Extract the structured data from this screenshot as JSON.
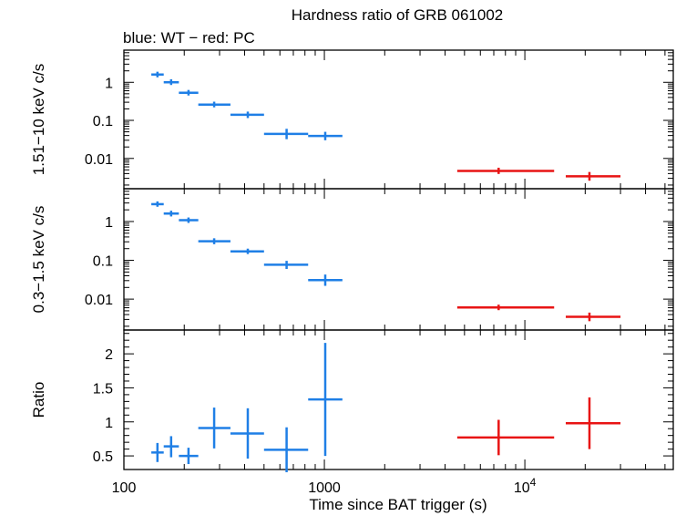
{
  "chart_data": {
    "type": "scatter",
    "title": "Hardness ratio of GRB 061002",
    "subtitle": "blue: WT − red: PC",
    "xlabel": "Time since BAT trigger (s)",
    "xscale": "log",
    "xlim": [
      100,
      55000
    ],
    "x_tick_labels": [
      {
        "value": 100,
        "label": "100"
      },
      {
        "value": 1000,
        "label": "1000"
      },
      {
        "value": 10000,
        "label": "10",
        "exponent": "4"
      }
    ],
    "colors": {
      "WT": "#1f7fe6",
      "PC": "#e81414"
    },
    "panels": [
      {
        "id": "hard",
        "ylabel": "1.51−10 keV c/s",
        "yscale": "log",
        "ylim": [
          0.0016,
          7
        ],
        "y_ticks": [
          {
            "value": 1,
            "label": "1"
          },
          {
            "value": 0.1,
            "label": "0.1"
          },
          {
            "value": 0.01,
            "label": "0.01"
          }
        ],
        "series": [
          {
            "name": "WT",
            "color": "#1f7fe6",
            "points": [
              {
                "x": 147,
                "xlo": 137,
                "xhi": 158,
                "y": 1.6,
                "ylo": 1.35,
                "yhi": 1.9
              },
              {
                "x": 172,
                "xlo": 158,
                "xhi": 188,
                "y": 1.0,
                "ylo": 0.85,
                "yhi": 1.2
              },
              {
                "x": 210,
                "xlo": 188,
                "xhi": 235,
                "y": 0.53,
                "ylo": 0.45,
                "yhi": 0.63
              },
              {
                "x": 282,
                "xlo": 235,
                "xhi": 340,
                "y": 0.26,
                "ylo": 0.22,
                "yhi": 0.31
              },
              {
                "x": 415,
                "xlo": 340,
                "xhi": 500,
                "y": 0.14,
                "ylo": 0.115,
                "yhi": 0.17
              },
              {
                "x": 648,
                "xlo": 500,
                "xhi": 830,
                "y": 0.044,
                "ylo": 0.032,
                "yhi": 0.06
              },
              {
                "x": 1010,
                "xlo": 830,
                "xhi": 1230,
                "y": 0.039,
                "ylo": 0.03,
                "yhi": 0.05
              }
            ]
          },
          {
            "name": "PC",
            "color": "#e81414",
            "points": [
              {
                "x": 7400,
                "xlo": 4600,
                "xhi": 14000,
                "y": 0.0047,
                "ylo": 0.0039,
                "yhi": 0.0057
              },
              {
                "x": 21000,
                "xlo": 16000,
                "xhi": 30000,
                "y": 0.0034,
                "ylo": 0.0026,
                "yhi": 0.0044
              }
            ]
          }
        ]
      },
      {
        "id": "soft",
        "ylabel": "0.3−1.5 keV c/s",
        "yscale": "log",
        "ylim": [
          0.0016,
          7
        ],
        "y_ticks": [
          {
            "value": 1,
            "label": "1"
          },
          {
            "value": 0.1,
            "label": "0.1"
          },
          {
            "value": 0.01,
            "label": "0.01"
          }
        ],
        "series": [
          {
            "name": "WT",
            "color": "#1f7fe6",
            "points": [
              {
                "x": 147,
                "xlo": 137,
                "xhi": 158,
                "y": 2.8,
                "ylo": 2.4,
                "yhi": 3.3
              },
              {
                "x": 172,
                "xlo": 158,
                "xhi": 188,
                "y": 1.6,
                "ylo": 1.35,
                "yhi": 1.9
              },
              {
                "x": 210,
                "xlo": 188,
                "xhi": 235,
                "y": 1.08,
                "ylo": 0.92,
                "yhi": 1.27
              },
              {
                "x": 282,
                "xlo": 235,
                "xhi": 340,
                "y": 0.31,
                "ylo": 0.26,
                "yhi": 0.37
              },
              {
                "x": 415,
                "xlo": 340,
                "xhi": 500,
                "y": 0.17,
                "ylo": 0.145,
                "yhi": 0.2
              },
              {
                "x": 648,
                "xlo": 500,
                "xhi": 830,
                "y": 0.077,
                "ylo": 0.06,
                "yhi": 0.097
              },
              {
                "x": 1010,
                "xlo": 830,
                "xhi": 1230,
                "y": 0.031,
                "ylo": 0.022,
                "yhi": 0.043
              }
            ]
          },
          {
            "name": "PC",
            "color": "#e81414",
            "points": [
              {
                "x": 7400,
                "xlo": 4600,
                "xhi": 14000,
                "y": 0.0061,
                "ylo": 0.0052,
                "yhi": 0.0072
              },
              {
                "x": 21000,
                "xlo": 16000,
                "xhi": 30000,
                "y": 0.0035,
                "ylo": 0.0027,
                "yhi": 0.0045
              }
            ]
          }
        ]
      },
      {
        "id": "ratio",
        "ylabel": "Ratio",
        "yscale": "linear",
        "ylim": [
          0.3,
          2.35
        ],
        "y_ticks": [
          {
            "value": 2,
            "label": "2"
          },
          {
            "value": 1.5,
            "label": "1.5"
          },
          {
            "value": 1,
            "label": "1"
          },
          {
            "value": 0.5,
            "label": "0.5"
          }
        ],
        "series": [
          {
            "name": "WT",
            "color": "#1f7fe6",
            "points": [
              {
                "x": 147,
                "xlo": 137,
                "xhi": 158,
                "y": 0.55,
                "ylo": 0.41,
                "yhi": 0.69
              },
              {
                "x": 172,
                "xlo": 158,
                "xhi": 188,
                "y": 0.64,
                "ylo": 0.48,
                "yhi": 0.79
              },
              {
                "x": 210,
                "xlo": 188,
                "xhi": 235,
                "y": 0.5,
                "ylo": 0.38,
                "yhi": 0.62
              },
              {
                "x": 282,
                "xlo": 235,
                "xhi": 340,
                "y": 0.91,
                "ylo": 0.61,
                "yhi": 1.21
              },
              {
                "x": 415,
                "xlo": 340,
                "xhi": 500,
                "y": 0.83,
                "ylo": 0.46,
                "yhi": 1.2
              },
              {
                "x": 648,
                "xlo": 500,
                "xhi": 830,
                "y": 0.59,
                "ylo": 0.26,
                "yhi": 0.92
              },
              {
                "x": 1010,
                "xlo": 830,
                "xhi": 1230,
                "y": 1.33,
                "ylo": 0.5,
                "yhi": 2.16
              }
            ]
          },
          {
            "name": "PC",
            "color": "#e81414",
            "points": [
              {
                "x": 7400,
                "xlo": 4600,
                "xhi": 14000,
                "y": 0.77,
                "ylo": 0.51,
                "yhi": 1.03
              },
              {
                "x": 21000,
                "xlo": 16000,
                "xhi": 30000,
                "y": 0.98,
                "ylo": 0.6,
                "yhi": 1.36
              }
            ]
          }
        ]
      }
    ]
  }
}
